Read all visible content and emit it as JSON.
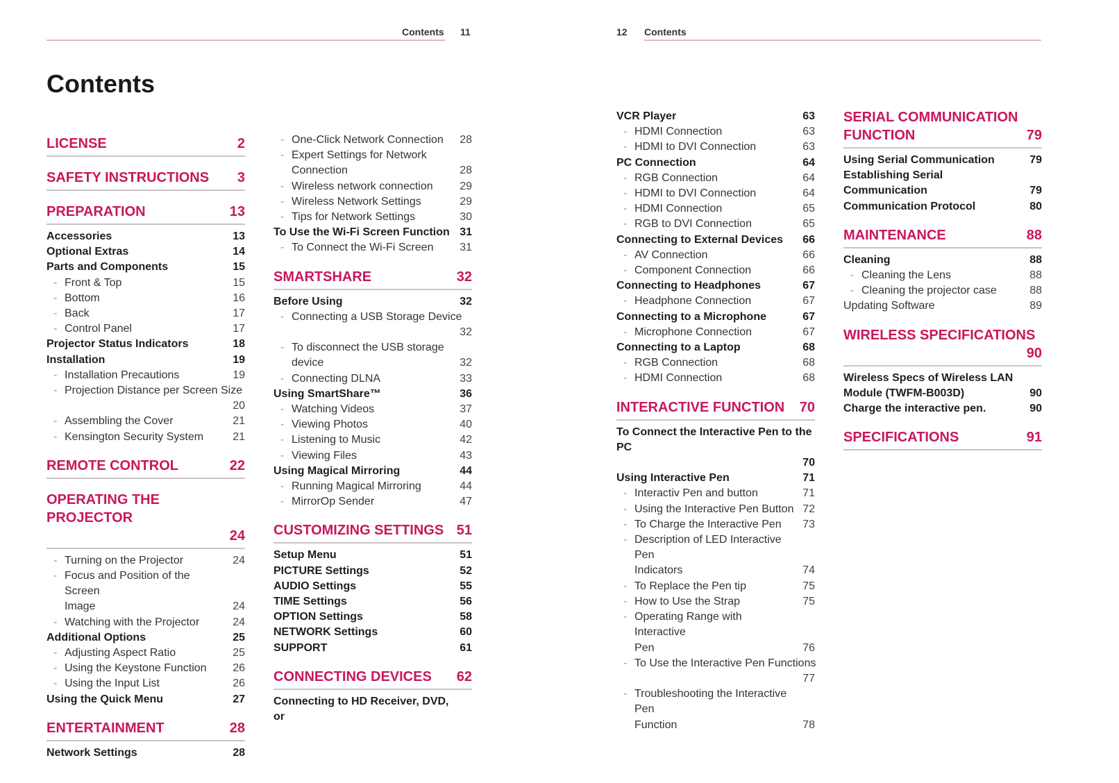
{
  "left_page": {
    "running_head": "Contents",
    "page_number": "11",
    "title": "Contents"
  },
  "right_page": {
    "running_head": "Contents",
    "page_number": "12"
  },
  "colors": {
    "accent": "#c8175d",
    "rule": "#dcbccb"
  },
  "columns": [
    [
      {
        "k": "sec",
        "t": "LICENSE",
        "p": "2"
      },
      {
        "k": "sec",
        "t": "SAFETY INSTRUCTIONS",
        "p": "3"
      },
      {
        "k": "sec",
        "t": "PREPARATION",
        "p": "13"
      },
      {
        "k": "bold",
        "t": "Accessories",
        "p": "13"
      },
      {
        "k": "bold",
        "t": "Optional Extras",
        "p": "14"
      },
      {
        "k": "bold",
        "t": "Parts and Components",
        "p": "15"
      },
      {
        "k": "sub",
        "t": "Front & Top",
        "p": "15"
      },
      {
        "k": "sub",
        "t": "Bottom",
        "p": "16"
      },
      {
        "k": "sub",
        "t": "Back",
        "p": "17"
      },
      {
        "k": "sub",
        "t": "Control Panel",
        "p": "17"
      },
      {
        "k": "bold",
        "t": "Projector Status Indicators",
        "p": "18"
      },
      {
        "k": "bold",
        "t": "Installation",
        "p": "19"
      },
      {
        "k": "sub",
        "t": "Installation Precautions",
        "p": "19"
      },
      {
        "k": "sub",
        "t": "Projection Distance per Screen Size",
        "p": "20",
        "own": true
      },
      {
        "k": "sub",
        "t": "Assembling the Cover",
        "p": "21"
      },
      {
        "k": "sub",
        "t": "Kensington Security System",
        "p": "21"
      },
      {
        "k": "sec",
        "t": "REMOTE CONTROL",
        "p": "22"
      },
      {
        "k": "sec",
        "t": "OPERATING THE PROJECTOR",
        "p": "24",
        "own": true
      },
      {
        "k": "sub",
        "t": "Turning on the Projector",
        "p": "24"
      },
      {
        "k": "sub",
        "t": "Focus and Position of the Screen\nImage",
        "p": "24"
      },
      {
        "k": "sub",
        "t": "Watching with the Projector",
        "p": "24"
      },
      {
        "k": "bold",
        "t": "Additional Options",
        "p": "25"
      },
      {
        "k": "sub",
        "t": "Adjusting Aspect Ratio",
        "p": "25"
      },
      {
        "k": "sub",
        "t": "Using the Keystone Function",
        "p": "26"
      },
      {
        "k": "sub",
        "t": "Using the Input List",
        "p": "26"
      },
      {
        "k": "bold",
        "t": "Using the Quick Menu",
        "p": "27"
      },
      {
        "k": "sec",
        "t": "ENTERTAINMENT",
        "p": "28"
      },
      {
        "k": "bold",
        "t": "Network Settings",
        "p": "28"
      }
    ],
    [
      {
        "k": "sub",
        "t": "One-Click Network Connection",
        "p": "28"
      },
      {
        "k": "sub",
        "t": "Expert Settings for Network\nConnection",
        "p": "28"
      },
      {
        "k": "sub",
        "t": "Wireless network connection",
        "p": "29"
      },
      {
        "k": "sub",
        "t": "Wireless Network Settings",
        "p": "29"
      },
      {
        "k": "sub",
        "t": "Tips for Network Settings",
        "p": "30"
      },
      {
        "k": "bold",
        "t": "To Use the Wi-Fi Screen Function",
        "p": "31"
      },
      {
        "k": "sub",
        "t": "To Connect the Wi-Fi Screen",
        "p": "31"
      },
      {
        "k": "sec",
        "t": "SMARTSHARE",
        "p": "32"
      },
      {
        "k": "bold",
        "t": "Before Using",
        "p": "32"
      },
      {
        "k": "sub",
        "t": "Connecting a USB Storage Device",
        "p": "32",
        "own": true
      },
      {
        "k": "sub",
        "t": "To disconnect the USB storage\ndevice",
        "p": "32"
      },
      {
        "k": "sub",
        "t": "Connecting DLNA",
        "p": "33"
      },
      {
        "k": "bold",
        "t": "Using SmartShare™",
        "p": "36"
      },
      {
        "k": "sub",
        "t": "Watching Videos",
        "p": "37"
      },
      {
        "k": "sub",
        "t": "Viewing Photos",
        "p": "40"
      },
      {
        "k": "sub",
        "t": "Listening to Music",
        "p": "42"
      },
      {
        "k": "sub",
        "t": "Viewing Files",
        "p": "43"
      },
      {
        "k": "bold",
        "t": "Using Magical Mirroring",
        "p": "44"
      },
      {
        "k": "sub",
        "t": "Running Magical Mirroring",
        "p": "44"
      },
      {
        "k": "sub",
        "t": "MirrorOp Sender",
        "p": "47"
      },
      {
        "k": "sec",
        "t": "CUSTOMIZING SETTINGS",
        "p": "51"
      },
      {
        "k": "bold",
        "t": "Setup Menu",
        "p": "51"
      },
      {
        "k": "bold",
        "t": "PICTURE Settings",
        "p": "52"
      },
      {
        "k": "bold",
        "t": "AUDIO Settings",
        "p": "55"
      },
      {
        "k": "bold",
        "t": "TIME Settings",
        "p": "56"
      },
      {
        "k": "bold",
        "t": "OPTION Settings",
        "p": "58"
      },
      {
        "k": "bold",
        "t": "NETWORK Settings",
        "p": "60"
      },
      {
        "k": "bold",
        "t": "SUPPORT",
        "p": "61"
      },
      {
        "k": "sec",
        "t": "CONNECTING DEVICES",
        "p": "62"
      },
      {
        "k": "bold",
        "t": "Connecting to HD Receiver, DVD, or",
        "p": ""
      }
    ],
    [
      {
        "k": "bold",
        "t": "VCR Player",
        "p": "63"
      },
      {
        "k": "sub",
        "t": "HDMI Connection",
        "p": "63"
      },
      {
        "k": "sub",
        "t": "HDMI to DVI Connection",
        "p": "63"
      },
      {
        "k": "bold",
        "t": "PC Connection",
        "p": "64"
      },
      {
        "k": "sub",
        "t": "RGB Connection",
        "p": "64"
      },
      {
        "k": "sub",
        "t": "HDMI to DVI Connection",
        "p": "64"
      },
      {
        "k": "sub",
        "t": "HDMI Connection",
        "p": "65"
      },
      {
        "k": "sub",
        "t": "RGB to DVI Connection",
        "p": "65"
      },
      {
        "k": "bold",
        "t": "Connecting to External Devices",
        "p": "66"
      },
      {
        "k": "sub",
        "t": "AV Connection",
        "p": "66"
      },
      {
        "k": "sub",
        "t": "Component Connection",
        "p": "66"
      },
      {
        "k": "bold",
        "t": "Connecting to Headphones",
        "p": "67"
      },
      {
        "k": "sub",
        "t": "Headphone Connection",
        "p": "67"
      },
      {
        "k": "bold",
        "t": "Connecting to a Microphone",
        "p": "67"
      },
      {
        "k": "sub",
        "t": "Microphone Connection",
        "p": "67"
      },
      {
        "k": "bold",
        "t": "Connecting to a Laptop",
        "p": "68"
      },
      {
        "k": "sub",
        "t": "RGB Connection",
        "p": "68"
      },
      {
        "k": "sub",
        "t": "HDMI Connection",
        "p": "68"
      },
      {
        "k": "sec",
        "t": "INTERACTIVE FUNCTION",
        "p": "70"
      },
      {
        "k": "bold",
        "t": "To Connect the Interactive Pen to the PC",
        "p": "70",
        "own": true
      },
      {
        "k": "bold",
        "t": "Using Interactive Pen",
        "p": "71"
      },
      {
        "k": "sub",
        "t": "Interactiv Pen and button",
        "p": "71"
      },
      {
        "k": "sub",
        "t": "Using the Interactive Pen Button",
        "p": "72"
      },
      {
        "k": "sub",
        "t": "To Charge the Interactive Pen",
        "p": "73"
      },
      {
        "k": "sub",
        "t": "Description of LED Interactive Pen\nIndicators",
        "p": "74"
      },
      {
        "k": "sub",
        "t": "To Replace the Pen tip",
        "p": "75"
      },
      {
        "k": "sub",
        "t": "How to Use the Strap",
        "p": "75"
      },
      {
        "k": "sub",
        "t": "Operating Range with Interactive\nPen",
        "p": "76"
      },
      {
        "k": "sub",
        "t": "To Use the Interactive Pen Functions",
        "p": "77",
        "own": true
      },
      {
        "k": "sub",
        "t": "Troubleshooting the Interactive Pen\nFunction",
        "p": "78"
      }
    ],
    [
      {
        "k": "sec",
        "t": "SERIAL COMMUNICATION\n      FUNCTION",
        "p": "79"
      },
      {
        "k": "bold",
        "t": "Using Serial Communication",
        "p": "79"
      },
      {
        "k": "bold",
        "t": "Establishing Serial Communication",
        "p": "79"
      },
      {
        "k": "bold",
        "t": "Communication Protocol",
        "p": "80"
      },
      {
        "k": "sec",
        "t": "MAINTENANCE",
        "p": "88"
      },
      {
        "k": "bold",
        "t": "Cleaning",
        "p": "88"
      },
      {
        "k": "sub",
        "t": "Cleaning the Lens",
        "p": "88"
      },
      {
        "k": "sub",
        "t": "Cleaning the projector case",
        "p": "88"
      },
      {
        "k": "plain",
        "t": "Updating Software",
        "p": "89"
      },
      {
        "k": "sec",
        "t": "WIRELESS SPECIFICATIONS",
        "p": "90",
        "own": true
      },
      {
        "k": "bold",
        "t": "Wireless Specs of Wireless LAN\nModule (TWFM-B003D)",
        "p": "90"
      },
      {
        "k": "bold",
        "t": "Charge the interactive pen.",
        "p": "90"
      },
      {
        "k": "sec",
        "t": "SPECIFICATIONS",
        "p": "91"
      }
    ]
  ]
}
